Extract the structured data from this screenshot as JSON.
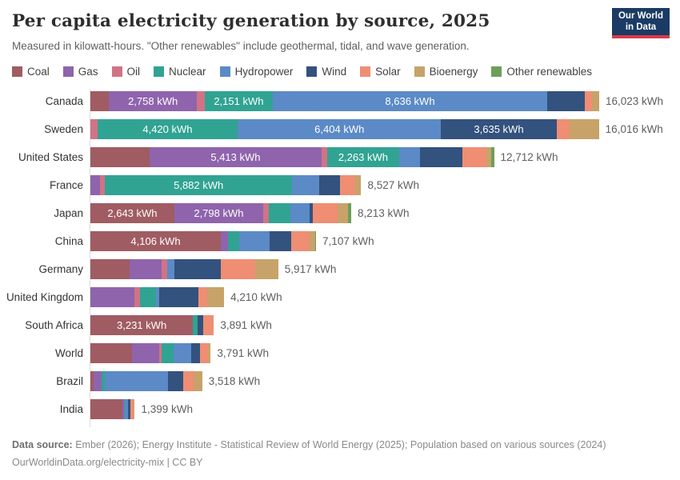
{
  "header": {
    "title": "Per capita electricity generation by source, 2025",
    "subtitle": "Measured in kilowatt-hours. \"Other renewables\" include geothermal, tidal, and wave generation."
  },
  "logo": {
    "line1": "Our World",
    "line2": "in Data",
    "bg_color": "#1B3B64",
    "accent_color": "#D93A4A"
  },
  "footer": {
    "source_label": "Data source:",
    "source_text": " Ember (2026); Energy Institute - Statistical Review of World Energy (2025); Population based on various sources (2024)",
    "link": "OurWorldinData.org/electricity-mix",
    "license": " | CC BY"
  },
  "chart_data": {
    "type": "bar",
    "orientation": "horizontal-stacked",
    "title": "Per capita electricity generation by source, 2025",
    "unit": "kWh",
    "xlim": [
      0,
      16023
    ],
    "grid": false,
    "legend_position": "top",
    "sources": [
      {
        "name": "Coal",
        "color": "#A05C63"
      },
      {
        "name": "Gas",
        "color": "#8F64AC"
      },
      {
        "name": "Oil",
        "color": "#D17386"
      },
      {
        "name": "Nuclear",
        "color": "#31A392"
      },
      {
        "name": "Hydropower",
        "color": "#5B8AC6"
      },
      {
        "name": "Wind",
        "color": "#33527E"
      },
      {
        "name": "Solar",
        "color": "#EF8E73"
      },
      {
        "name": "Bioenergy",
        "color": "#C7A36A"
      },
      {
        "name": "Other renewables",
        "color": "#6E9E5B"
      }
    ],
    "rows": [
      {
        "country": "Canada",
        "total": 16023,
        "total_label": "16,023 kWh",
        "segments": [
          {
            "source": "Coal",
            "value": 590
          },
          {
            "source": "Gas",
            "value": 2758,
            "label": "2,758 kWh"
          },
          {
            "source": "Oil",
            "value": 248
          },
          {
            "source": "Nuclear",
            "value": 2151,
            "label": "2,151 kWh"
          },
          {
            "source": "Hydropower",
            "value": 8636,
            "label": "8,636 kWh"
          },
          {
            "source": "Wind",
            "value": 1175
          },
          {
            "source": "Solar",
            "value": 230
          },
          {
            "source": "Bioenergy",
            "value": 235
          }
        ]
      },
      {
        "country": "Sweden",
        "total": 16016,
        "total_label": "16,016 kWh",
        "segments": [
          {
            "source": "Oil",
            "value": 220
          },
          {
            "source": "Nuclear",
            "value": 4420,
            "label": "4,420 kWh"
          },
          {
            "source": "Hydropower",
            "value": 6404,
            "label": "6,404 kWh"
          },
          {
            "source": "Wind",
            "value": 3635,
            "label": "3,635 kWh"
          },
          {
            "source": "Solar",
            "value": 420
          },
          {
            "source": "Bioenergy",
            "value": 917
          }
        ]
      },
      {
        "country": "United States",
        "total": 12712,
        "total_label": "12,712 kWh",
        "segments": [
          {
            "source": "Coal",
            "value": 1865
          },
          {
            "source": "Gas",
            "value": 5413,
            "label": "5,413 kWh"
          },
          {
            "source": "Oil",
            "value": 180
          },
          {
            "source": "Nuclear",
            "value": 2263,
            "label": "2,263 kWh"
          },
          {
            "source": "Hydropower",
            "value": 660
          },
          {
            "source": "Wind",
            "value": 1326
          },
          {
            "source": "Solar",
            "value": 755
          },
          {
            "source": "Bioenergy",
            "value": 150
          },
          {
            "source": "Other renewables",
            "value": 100
          }
        ]
      },
      {
        "country": "France",
        "total": 8527,
        "total_label": "8,527 kWh",
        "segments": [
          {
            "source": "Gas",
            "value": 300
          },
          {
            "source": "Oil",
            "value": 165
          },
          {
            "source": "Nuclear",
            "value": 5882,
            "label": "5,882 kWh"
          },
          {
            "source": "Hydropower",
            "value": 850
          },
          {
            "source": "Wind",
            "value": 665
          },
          {
            "source": "Solar",
            "value": 485
          },
          {
            "source": "Bioenergy",
            "value": 180
          }
        ]
      },
      {
        "country": "Japan",
        "total": 8213,
        "total_label": "8,213 kWh",
        "segments": [
          {
            "source": "Coal",
            "value": 2643,
            "label": "2,643 kWh"
          },
          {
            "source": "Gas",
            "value": 2798,
            "label": "2,798 kWh"
          },
          {
            "source": "Oil",
            "value": 190
          },
          {
            "source": "Nuclear",
            "value": 670
          },
          {
            "source": "Hydropower",
            "value": 600
          },
          {
            "source": "Wind",
            "value": 100
          },
          {
            "source": "Solar",
            "value": 780
          },
          {
            "source": "Bioenergy",
            "value": 330
          },
          {
            "source": "Other renewables",
            "value": 102
          }
        ]
      },
      {
        "country": "China",
        "total": 7107,
        "total_label": "7,107 kWh",
        "segments": [
          {
            "source": "Coal",
            "value": 4106,
            "label": "4,106 kWh"
          },
          {
            "source": "Gas",
            "value": 230
          },
          {
            "source": "Nuclear",
            "value": 360
          },
          {
            "source": "Hydropower",
            "value": 960
          },
          {
            "source": "Wind",
            "value": 670
          },
          {
            "source": "Solar",
            "value": 580
          },
          {
            "source": "Bioenergy",
            "value": 180
          },
          {
            "source": "Other renewables",
            "value": 21
          }
        ]
      },
      {
        "country": "Germany",
        "total": 5917,
        "total_label": "5,917 kWh",
        "segments": [
          {
            "source": "Coal",
            "value": 1225
          },
          {
            "source": "Gas",
            "value": 1015
          },
          {
            "source": "Oil",
            "value": 175
          },
          {
            "source": "Hydropower",
            "value": 225
          },
          {
            "source": "Wind",
            "value": 1480
          },
          {
            "source": "Solar",
            "value": 1080
          },
          {
            "source": "Bioenergy",
            "value": 717
          }
        ]
      },
      {
        "country": "United Kingdom",
        "total": 4210,
        "total_label": "4,210 kWh",
        "segments": [
          {
            "source": "Gas",
            "value": 1380
          },
          {
            "source": "Oil",
            "value": 193
          },
          {
            "source": "Nuclear",
            "value": 487
          },
          {
            "source": "Hydropower",
            "value": 100
          },
          {
            "source": "Wind",
            "value": 1250
          },
          {
            "source": "Solar",
            "value": 277
          },
          {
            "source": "Bioenergy",
            "value": 523
          }
        ]
      },
      {
        "country": "South Africa",
        "total": 3891,
        "total_label": "3,891 kWh",
        "segments": [
          {
            "source": "Coal",
            "value": 3231,
            "label": "3,231 kWh"
          },
          {
            "source": "Nuclear",
            "value": 140
          },
          {
            "source": "Wind",
            "value": 180
          },
          {
            "source": "Solar",
            "value": 340
          }
        ]
      },
      {
        "country": "World",
        "total": 3791,
        "total_label": "3,791 kWh",
        "segments": [
          {
            "source": "Coal",
            "value": 1322
          },
          {
            "source": "Gas",
            "value": 840
          },
          {
            "source": "Oil",
            "value": 84
          },
          {
            "source": "Nuclear",
            "value": 386
          },
          {
            "source": "Hydropower",
            "value": 546
          },
          {
            "source": "Wind",
            "value": 277
          },
          {
            "source": "Solar",
            "value": 252
          },
          {
            "source": "Bioenergy",
            "value": 84
          }
        ]
      },
      {
        "country": "Brazil",
        "total": 3518,
        "total_label": "3,518 kWh",
        "segments": [
          {
            "source": "Coal",
            "value": 110
          },
          {
            "source": "Gas",
            "value": 252
          },
          {
            "source": "Nuclear",
            "value": 84
          },
          {
            "source": "Hydropower",
            "value": 1990
          },
          {
            "source": "Wind",
            "value": 480
          },
          {
            "source": "Solar",
            "value": 340
          },
          {
            "source": "Bioenergy",
            "value": 262
          }
        ]
      },
      {
        "country": "India",
        "total": 1399,
        "total_label": "1,399 kWh",
        "segments": [
          {
            "source": "Coal",
            "value": 1020
          },
          {
            "source": "Gas",
            "value": 30
          },
          {
            "source": "Nuclear",
            "value": 40
          },
          {
            "source": "Hydropower",
            "value": 105
          },
          {
            "source": "Wind",
            "value": 55
          },
          {
            "source": "Solar",
            "value": 120
          },
          {
            "source": "Bioenergy",
            "value": 29
          }
        ]
      }
    ]
  }
}
